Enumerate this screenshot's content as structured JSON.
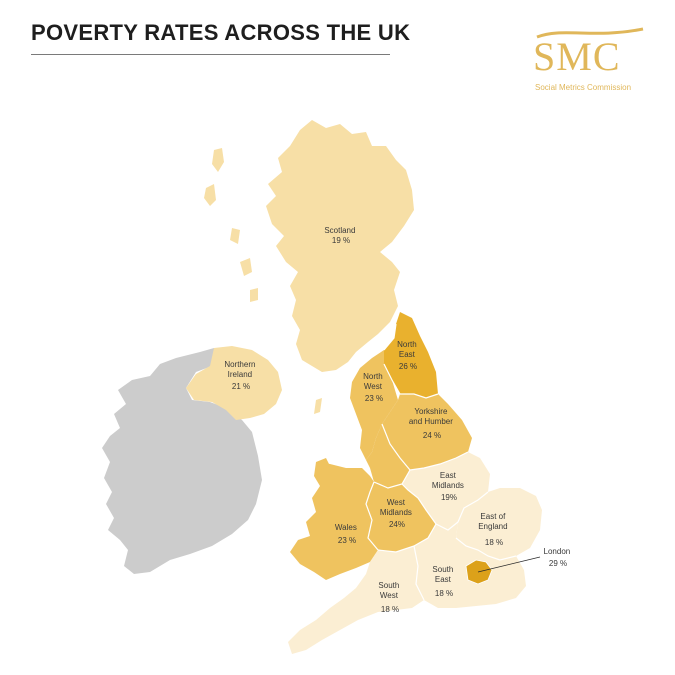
{
  "title": "POVERTY RATES ACROSS THE UK",
  "logo": {
    "mark": "SMC",
    "subtitle": "Social Metrics Commission"
  },
  "colors": {
    "accent": "#e0b75a",
    "ireland": "#cccccc",
    "scale_18": "#fbeed3",
    "scale_19_21": "#f7dfa6",
    "scale_23_24": "#efc35f",
    "scale_26": "#e9b12e",
    "scale_29": "#dca11a"
  },
  "regions": [
    {
      "id": "scotland",
      "name": "Scotland",
      "value": "19 %"
    },
    {
      "id": "northern-ireland",
      "name": "Northern Ireland",
      "value": "21 %"
    },
    {
      "id": "north-east",
      "name": "North East",
      "value": "26 %"
    },
    {
      "id": "north-west",
      "name": "North West",
      "value": "23 %"
    },
    {
      "id": "yorkshire",
      "name": "Yorkshire and Humber",
      "value": "24 %"
    },
    {
      "id": "east-midlands",
      "name": "East Midlands",
      "value": "19%"
    },
    {
      "id": "west-midlands",
      "name": "West Midlands",
      "value": "24%"
    },
    {
      "id": "wales",
      "name": "Wales",
      "value": "23 %"
    },
    {
      "id": "east-of-england",
      "name": "East of England",
      "value": "18 %"
    },
    {
      "id": "london",
      "name": "London",
      "value": "29 %"
    },
    {
      "id": "south-east",
      "name": "South East",
      "value": "18 %"
    },
    {
      "id": "south-west",
      "name": "South West",
      "value": "18 %"
    }
  ],
  "map_labels": {
    "scotland": [
      "Scotland",
      "19 %"
    ],
    "northern-ireland": [
      "Northern",
      "Ireland",
      "21 %"
    ],
    "north-east": [
      "North",
      "East",
      "26 %"
    ],
    "north-west": [
      "North",
      "West",
      "23 %"
    ],
    "yorkshire": [
      "Yorkshire",
      "and Humber",
      "24 %"
    ],
    "east-midlands": [
      "East",
      "Midlands",
      "19%"
    ],
    "west-midlands": [
      "West",
      "Midlands",
      "24%"
    ],
    "wales": [
      "Wales",
      "23 %"
    ],
    "east-of-england": [
      "East of",
      "England",
      "18 %"
    ],
    "london": [
      "London",
      "29 %"
    ],
    "south-east": [
      "South",
      "East",
      "18 %"
    ],
    "south-west": [
      "South",
      "West",
      "18 %"
    ]
  }
}
